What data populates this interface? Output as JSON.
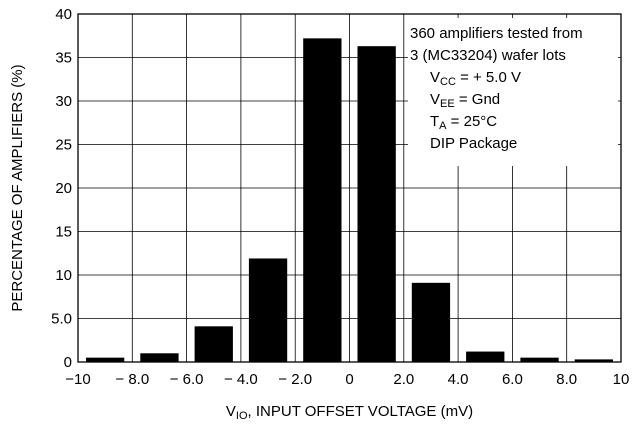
{
  "chart_data": {
    "type": "bar",
    "note_lines": [
      {
        "id": "line1",
        "parts": [
          {
            "t": "360 amplifiers tested  from"
          }
        ]
      },
      {
        "id": "line2",
        "parts": [
          {
            "t": "3 (MC33204) wafer lots"
          }
        ]
      },
      {
        "id": "line3",
        "parts": [
          {
            "t": "V"
          },
          {
            "t": "CC",
            "sub": true
          },
          {
            "t": " = + 5.0 V"
          }
        ]
      },
      {
        "id": "line4",
        "parts": [
          {
            "t": "V"
          },
          {
            "t": "EE",
            "sub": true
          },
          {
            "t": " = Gnd"
          }
        ]
      },
      {
        "id": "line5",
        "parts": [
          {
            "t": "T"
          },
          {
            "t": "A",
            "sub": true
          },
          {
            "t": " = 25°C"
          }
        ]
      },
      {
        "id": "line6",
        "parts": [
          {
            "t": "DIP Package"
          }
        ]
      }
    ],
    "xlabel": {
      "pre": "V",
      "sub": "IO",
      "post": ", INPUT OFFSET VOLTAGE (mV)"
    },
    "ylabel": "PERCENTAGE OF AMPLIFIERS (%)",
    "xlim": [
      -10,
      10
    ],
    "ylim": [
      0,
      40
    ],
    "x_ticks": [
      {
        "value": -10,
        "label": "−10"
      },
      {
        "value": -8,
        "label": "− 8.0"
      },
      {
        "value": -6,
        "label": "− 6.0"
      },
      {
        "value": -4,
        "label": "− 4.0"
      },
      {
        "value": -2,
        "label": "− 2.0"
      },
      {
        "value": 0,
        "label": "0"
      },
      {
        "value": 2,
        "label": "2.0"
      },
      {
        "value": 4,
        "label": "4.0"
      },
      {
        "value": 6,
        "label": "6.0"
      },
      {
        "value": 8,
        "label": "8.0"
      },
      {
        "value": 10,
        "label": "10"
      }
    ],
    "y_ticks": [
      {
        "value": 0,
        "label": "0"
      },
      {
        "value": 5,
        "label": "5.0"
      },
      {
        "value": 10,
        "label": "10"
      },
      {
        "value": 15,
        "label": "15"
      },
      {
        "value": 20,
        "label": "20"
      },
      {
        "value": 25,
        "label": "25"
      },
      {
        "value": 30,
        "label": "30"
      },
      {
        "value": 35,
        "label": "35"
      },
      {
        "value": 40,
        "label": "40"
      }
    ],
    "bins": [
      {
        "from": -10,
        "to": -8,
        "value": 0.5
      },
      {
        "from": -8,
        "to": -6,
        "value": 1.0
      },
      {
        "from": -6,
        "to": -4,
        "value": 4.1
      },
      {
        "from": -4,
        "to": -2,
        "value": 11.9
      },
      {
        "from": -2,
        "to": 0,
        "value": 37.2
      },
      {
        "from": 0,
        "to": 2,
        "value": 36.3
      },
      {
        "from": 2,
        "to": 4,
        "value": 9.1
      },
      {
        "from": 4,
        "to": 6,
        "value": 1.2
      },
      {
        "from": 6,
        "to": 8,
        "value": 0.5
      },
      {
        "from": 8,
        "to": 10,
        "value": 0.3
      }
    ],
    "grid": true,
    "colors": {
      "bar": "#000000",
      "grid": "#000000",
      "background": "#ffffff"
    }
  }
}
